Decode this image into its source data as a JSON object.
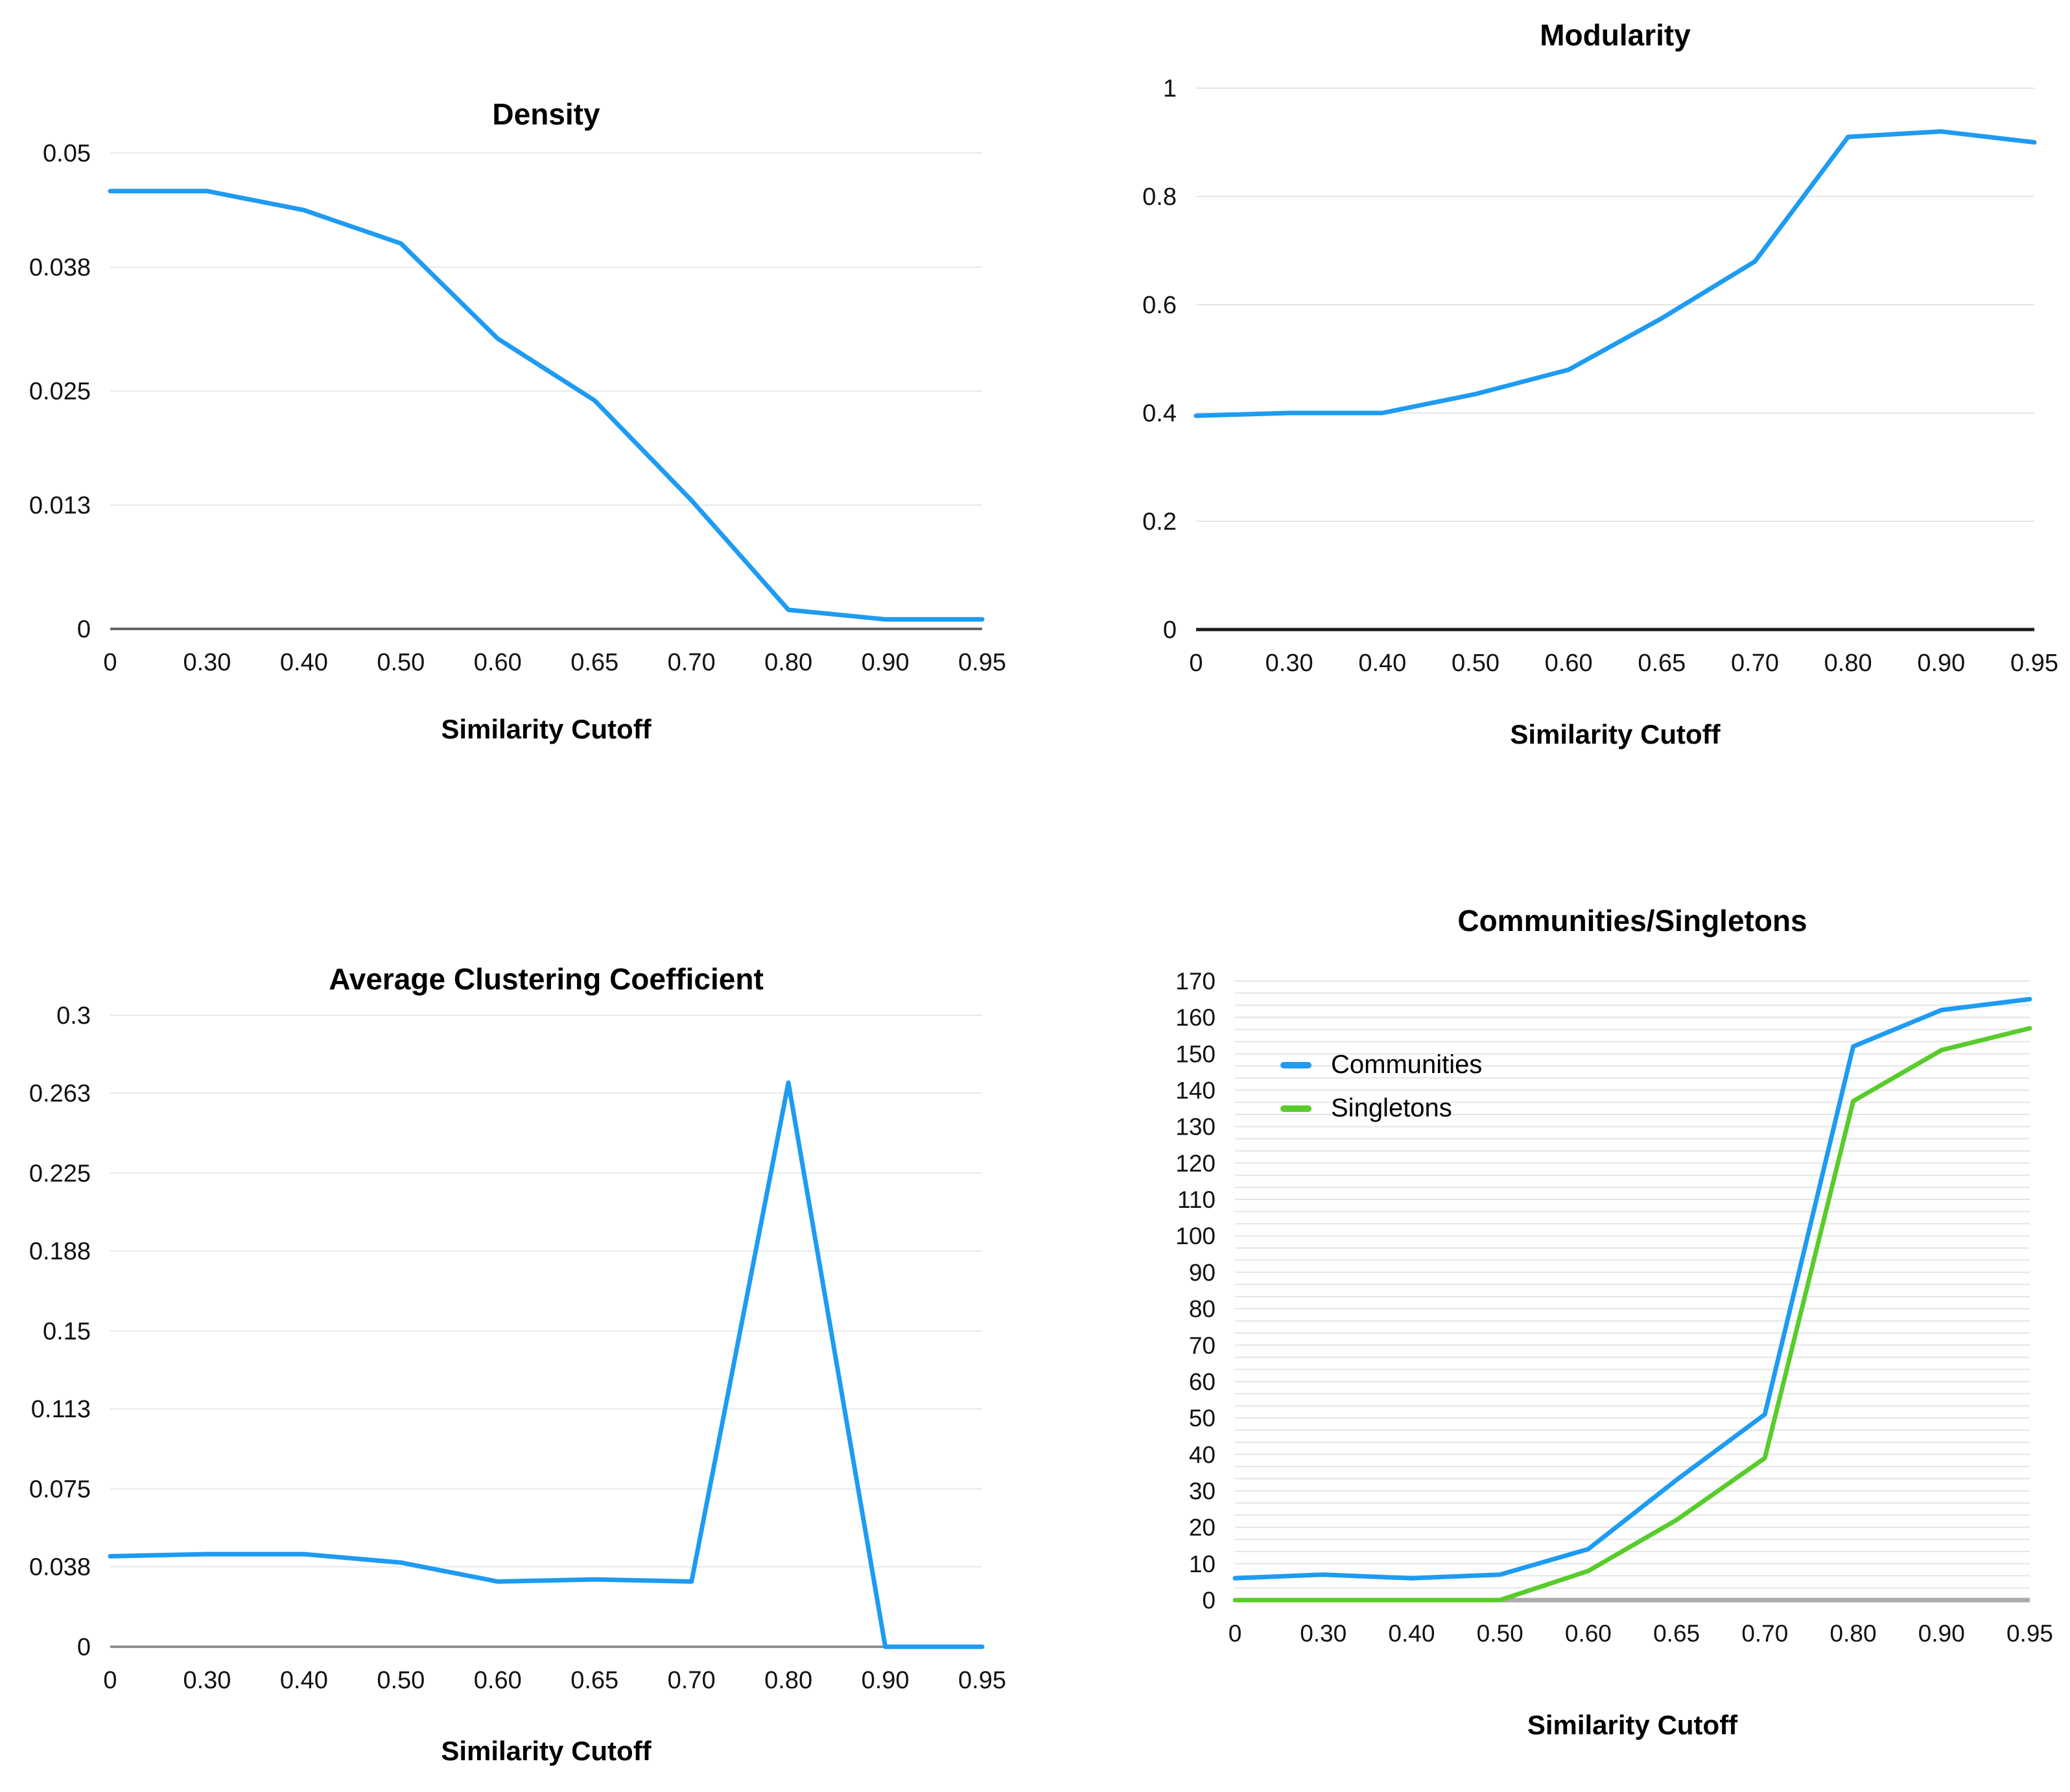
{
  "x_axis_title": "Similarity Cutoff",
  "chart_data": [
    {
      "id": "density",
      "type": "line",
      "title": "Density",
      "xlabel": "Similarity Cutoff",
      "ylabel": "",
      "categories": [
        "0",
        "0.30",
        "0.40",
        "0.50",
        "0.60",
        "0.65",
        "0.70",
        "0.80",
        "0.90",
        "0.95"
      ],
      "y_ticks": [
        0,
        0.013,
        0.025,
        0.038,
        0.05
      ],
      "y_tick_labels": [
        "0",
        "0.013",
        "0.025",
        "0.038",
        "0.05"
      ],
      "ylim": [
        0,
        0.05
      ],
      "grid": true,
      "legend": false,
      "series": [
        {
          "name": "Density",
          "color": "#1e9bf2",
          "values": [
            0.046,
            0.046,
            0.044,
            0.0405,
            0.0305,
            0.024,
            0.0135,
            0.002,
            0.001,
            0.001
          ]
        }
      ]
    },
    {
      "id": "modularity",
      "type": "line",
      "title": "Modularity",
      "xlabel": "Similarity Cutoff",
      "ylabel": "",
      "categories": [
        "0",
        "0.30",
        "0.40",
        "0.50",
        "0.60",
        "0.65",
        "0.70",
        "0.80",
        "0.90",
        "0.95"
      ],
      "y_ticks": [
        0,
        0.2,
        0.4,
        0.6,
        0.8,
        1
      ],
      "y_tick_labels": [
        "0",
        "0.2",
        "0.4",
        "0.6",
        "0.8",
        "1"
      ],
      "ylim": [
        0,
        1
      ],
      "grid": true,
      "legend": false,
      "series": [
        {
          "name": "Modularity",
          "color": "#1e9bf2",
          "values": [
            0.395,
            0.4,
            0.4,
            0.435,
            0.48,
            0.575,
            0.68,
            0.91,
            0.92,
            0.9
          ]
        }
      ]
    },
    {
      "id": "acc",
      "type": "line",
      "title": "Average Clustering Coefficient",
      "xlabel": "Similarity Cutoff",
      "ylabel": "",
      "categories": [
        "0",
        "0.30",
        "0.40",
        "0.50",
        "0.60",
        "0.65",
        "0.70",
        "0.80",
        "0.90",
        "0.95"
      ],
      "y_ticks": [
        0,
        0.038,
        0.075,
        0.113,
        0.15,
        0.188,
        0.225,
        0.263,
        0.3
      ],
      "y_tick_labels": [
        "0",
        "0.038",
        "0.075",
        "0.113",
        "0.15",
        "0.188",
        "0.225",
        "0.263",
        "0.3"
      ],
      "ylim": [
        0,
        0.3
      ],
      "grid": true,
      "legend": false,
      "series": [
        {
          "name": "Average Clustering Coefficient",
          "color": "#1e9bf2",
          "values": [
            0.043,
            0.044,
            0.044,
            0.04,
            0.031,
            0.032,
            0.031,
            0.268,
            0,
            0
          ]
        }
      ]
    },
    {
      "id": "communities",
      "type": "line",
      "title": "Communities/Singletons",
      "xlabel": "Similarity Cutoff",
      "ylabel": "",
      "categories": [
        "0",
        "0.30",
        "0.40",
        "0.50",
        "0.60",
        "0.65",
        "0.70",
        "0.80",
        "0.90",
        "0.95"
      ],
      "y_ticks": [
        0,
        10,
        20,
        30,
        40,
        50,
        60,
        70,
        80,
        90,
        100,
        110,
        120,
        130,
        140,
        150,
        160,
        170
      ],
      "y_tick_labels": [
        "0",
        "10",
        "20",
        "30",
        "40",
        "50",
        "60",
        "70",
        "80",
        "90",
        "100",
        "110",
        "120",
        "130",
        "140",
        "150",
        "160",
        "170"
      ],
      "ylim": [
        0,
        170
      ],
      "grid": true,
      "minor_gridlines_per_major": 2,
      "legend": true,
      "legend_position": "inside-left",
      "series": [
        {
          "name": "Communities",
          "color": "#1e9bf2",
          "values": [
            6,
            7,
            6,
            7,
            14,
            33,
            51,
            152,
            162,
            165
          ]
        },
        {
          "name": "Singletons",
          "color": "#58cc2b",
          "values": [
            0,
            0,
            0,
            0,
            8,
            22,
            39,
            137,
            151,
            157
          ]
        }
      ]
    }
  ]
}
